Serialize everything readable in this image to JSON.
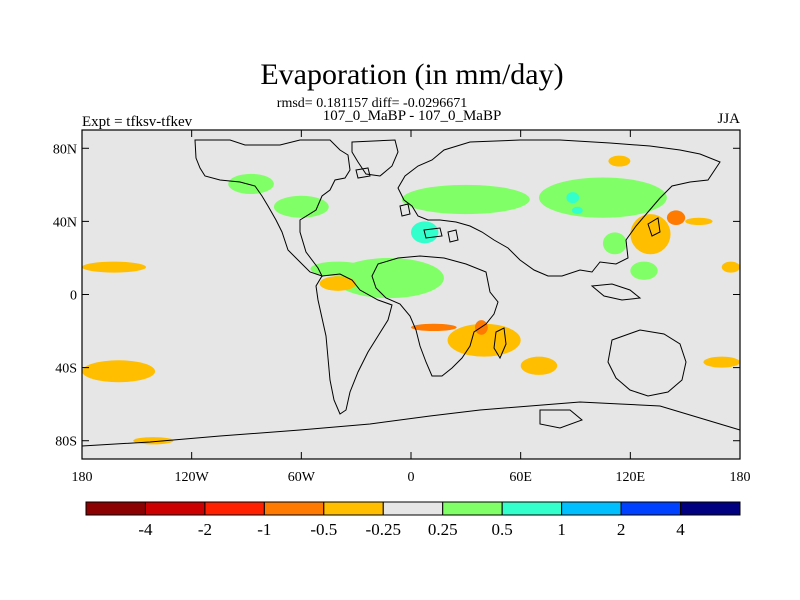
{
  "chart_data": {
    "type": "heatmap",
    "title": "Evaporation (in mm/day)",
    "stats_line": "rmsd= 0.181157 diff= -0.0296671",
    "subtitle": "107_0_MaBP - 107_0_MaBP",
    "left_label": "Expt = tfksv-tfkev",
    "right_label": "JJA",
    "x_range": [
      -180,
      180
    ],
    "y_range": [
      -90,
      90
    ],
    "x_ticks": [
      {
        "value": -180,
        "label": "180"
      },
      {
        "value": -120,
        "label": "120W"
      },
      {
        "value": -60,
        "label": "60W"
      },
      {
        "value": 0,
        "label": "0"
      },
      {
        "value": 60,
        "label": "60E"
      },
      {
        "value": 120,
        "label": "120E"
      },
      {
        "value": 180,
        "label": "180"
      }
    ],
    "y_ticks": [
      {
        "value": 80,
        "label": "80N"
      },
      {
        "value": 40,
        "label": "40N"
      },
      {
        "value": 0,
        "label": "0"
      },
      {
        "value": -40,
        "label": "40S"
      },
      {
        "value": -80,
        "label": "80S"
      }
    ],
    "colorbar": {
      "colors": [
        "#8b0000",
        "#cc0000",
        "#ff2000",
        "#ff7a00",
        "#ffbf00",
        "#e6e6e6",
        "#80ff66",
        "#33ffcc",
        "#00bfff",
        "#0040ff",
        "#000080"
      ],
      "labels": [
        "-4",
        "-2",
        "-1",
        "-0.5",
        "-0.25",
        "0.25",
        "0.5",
        "1",
        "2",
        "4"
      ]
    },
    "background_color": "#e6e6e6",
    "regions": [
      {
        "level": "0.25 to 0.5",
        "color": "#80ff66",
        "lon": [
          -42,
          18
        ],
        "lat": [
          -2,
          20
        ]
      },
      {
        "level": "0.25 to 0.5",
        "color": "#80ff66",
        "lon": [
          -5,
          65
        ],
        "lat": [
          44,
          60
        ]
      },
      {
        "level": "0.25 to 0.5",
        "color": "#80ff66",
        "lon": [
          70,
          140
        ],
        "lat": [
          42,
          64
        ]
      },
      {
        "level": "0.25 to 0.5",
        "color": "#80ff66",
        "lon": [
          -100,
          -75
        ],
        "lat": [
          55,
          66
        ]
      },
      {
        "level": "0.25 to 0.5",
        "color": "#80ff66",
        "lon": [
          -75,
          -45
        ],
        "lat": [
          42,
          54
        ]
      },
      {
        "level": "0.25 to 0.5",
        "color": "#80ff66",
        "lon": [
          -55,
          -25
        ],
        "lat": [
          10,
          18
        ]
      },
      {
        "level": "0.25 to 0.5",
        "color": "#80ff66",
        "lon": [
          105,
          118
        ],
        "lat": [
          22,
          34
        ]
      },
      {
        "level": "0.25 to 0.5",
        "color": "#80ff66",
        "lon": [
          120,
          135
        ],
        "lat": [
          8,
          18
        ]
      },
      {
        "level": "0.5 to 1",
        "color": "#33ffcc",
        "lon": [
          0,
          15
        ],
        "lat": [
          28,
          40
        ]
      },
      {
        "level": "0.5 to 1",
        "color": "#33ffcc",
        "lon": [
          85,
          92
        ],
        "lat": [
          50,
          56
        ]
      },
      {
        "level": "0.5 to 1",
        "color": "#33ffcc",
        "lon": [
          88,
          94
        ],
        "lat": [
          44,
          48
        ]
      },
      {
        "level": "-0.5 to -0.25",
        "color": "#ffbf00",
        "lon": [
          -180,
          -140
        ],
        "lat": [
          -48,
          -36
        ]
      },
      {
        "level": "-0.5 to -0.25",
        "color": "#ffbf00",
        "lon": [
          -180,
          -145
        ],
        "lat": [
          12,
          18
        ]
      },
      {
        "level": "-0.5 to -0.25",
        "color": "#ffbf00",
        "lon": [
          -152,
          -130
        ],
        "lat": [
          -82,
          -78
        ]
      },
      {
        "level": "-0.5 to -0.25",
        "color": "#ffbf00",
        "lon": [
          -50,
          -30
        ],
        "lat": [
          2,
          10
        ]
      },
      {
        "level": "-0.5 to -0.25",
        "color": "#ffbf00",
        "lon": [
          20,
          60
        ],
        "lat": [
          -34,
          -16
        ]
      },
      {
        "level": "-0.5 to -0.25",
        "color": "#ffbf00",
        "lon": [
          60,
          80
        ],
        "lat": [
          -44,
          -34
        ]
      },
      {
        "level": "-0.5 to -0.25",
        "color": "#ffbf00",
        "lon": [
          120,
          142
        ],
        "lat": [
          22,
          44
        ]
      },
      {
        "level": "-0.5 to -0.25",
        "color": "#ffbf00",
        "lon": [
          160,
          180
        ],
        "lat": [
          -40,
          -34
        ]
      },
      {
        "level": "-0.5 to -0.25",
        "color": "#ffbf00",
        "lon": [
          170,
          180
        ],
        "lat": [
          12,
          18
        ]
      },
      {
        "level": "-0.5 to -0.25",
        "color": "#ffbf00",
        "lon": [
          108,
          120
        ],
        "lat": [
          70,
          76
        ]
      },
      {
        "level": "-0.5 to -0.25",
        "color": "#ffbf00",
        "lon": [
          150,
          165
        ],
        "lat": [
          38,
          42
        ]
      },
      {
        "level": "-1 to -0.5",
        "color": "#ff7a00",
        "lon": [
          140,
          150
        ],
        "lat": [
          38,
          46
        ]
      },
      {
        "level": "-1 to -0.5",
        "color": "#ff7a00",
        "lon": [
          0,
          25
        ],
        "lat": [
          -20,
          -16
        ]
      },
      {
        "level": "-1 to -0.5",
        "color": "#ff7a00",
        "lon": [
          35,
          42
        ],
        "lat": [
          -22,
          -14
        ]
      }
    ]
  }
}
